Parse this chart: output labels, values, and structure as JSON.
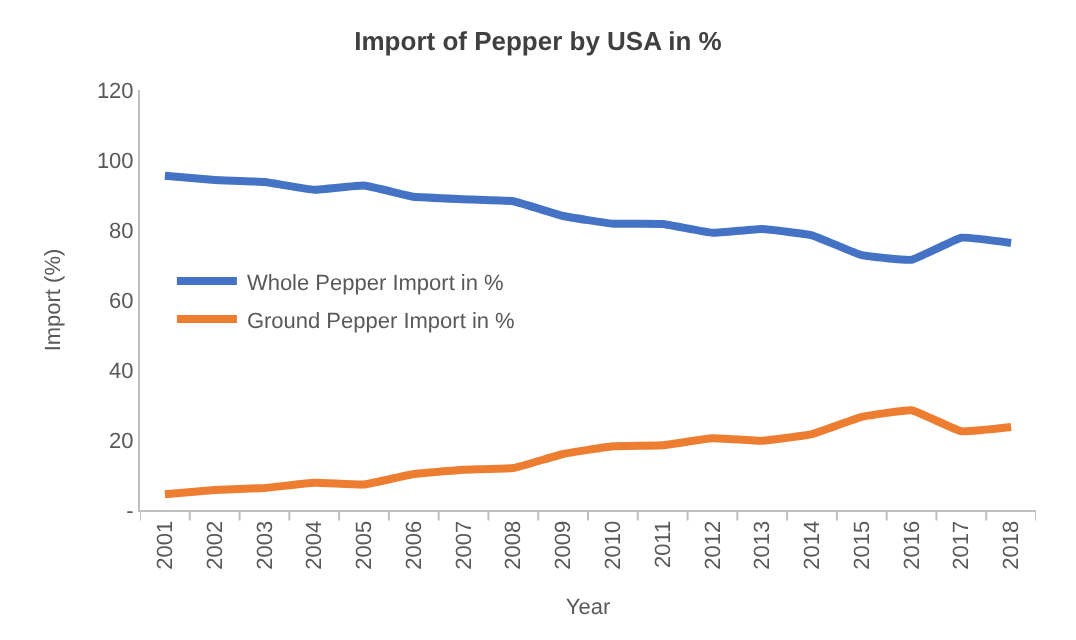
{
  "chart_data": {
    "type": "line",
    "title": "Import of Pepper by USA in %",
    "xlabel": "Year",
    "ylabel": "Import (%)",
    "categories": [
      "2001",
      "2002",
      "2003",
      "2004",
      "2005",
      "2006",
      "2007",
      "2008",
      "2009",
      "2010",
      "2011",
      "2012",
      "2013",
      "2014",
      "2015",
      "2016",
      "2017",
      "2018"
    ],
    "series": [
      {
        "name": "Whole Pepper Import in %",
        "color": "#4472c4",
        "values": [
          95.5,
          94.3,
          93.7,
          91.5,
          92.7,
          89.5,
          88.8,
          88.2,
          84,
          81.8,
          81.7,
          79.2,
          80.3,
          78.5,
          72.8,
          71.5,
          77.8,
          76.3
        ]
      },
      {
        "name": "Ground Pepper Import in %",
        "color": "#ed7d31",
        "values": [
          4.5,
          5.7,
          6.3,
          7.8,
          7.3,
          10.3,
          11.5,
          12,
          16,
          18.2,
          18.5,
          20.5,
          19.8,
          21.7,
          26.6,
          28.5,
          22.5,
          23.7
        ]
      }
    ],
    "ylim": [
      0,
      120
    ],
    "yticks": [
      {
        "value": 0,
        "label": "-"
      },
      20,
      40,
      60,
      80,
      100,
      120
    ],
    "legend": "left",
    "marker": "none",
    "line_style": "solid"
  }
}
